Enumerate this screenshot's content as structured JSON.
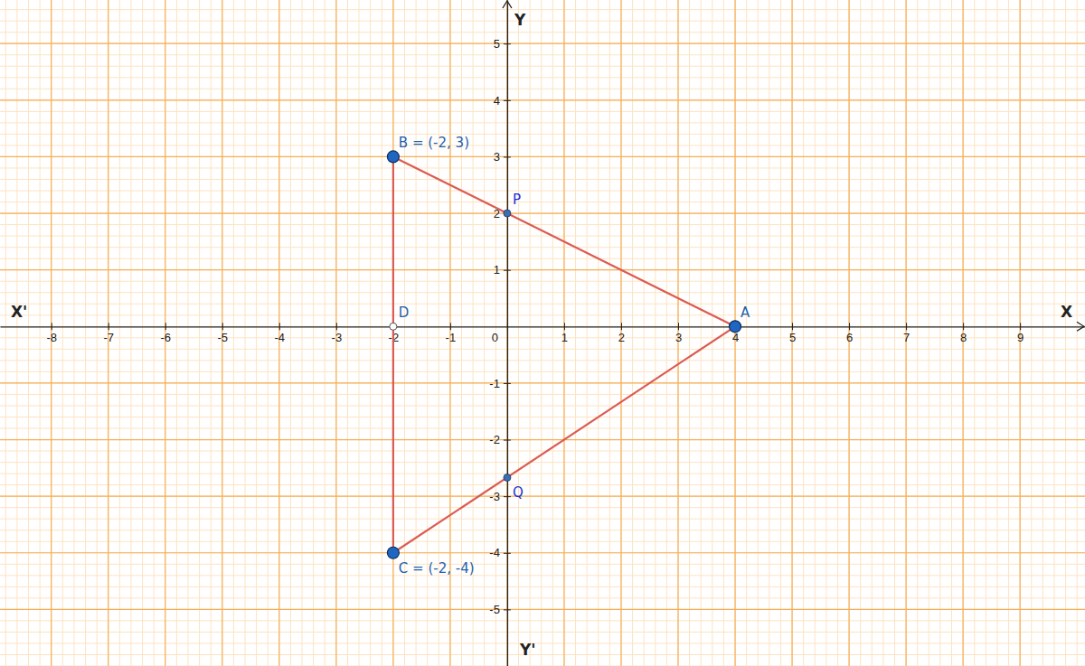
{
  "chart_data": {
    "type": "scatter",
    "axis_labels": {
      "x": "X",
      "x_neg": "X'",
      "y": "Y",
      "y_neg": "Y'"
    },
    "xlim": [
      -8.9,
      10.14
    ],
    "ylim": [
      -6.0,
      5.77
    ],
    "xticks": [
      -8,
      -7,
      -6,
      -5,
      -4,
      -3,
      -2,
      -1,
      0,
      1,
      2,
      3,
      4,
      5,
      6,
      7,
      8,
      9
    ],
    "yticks": [
      -5,
      -4,
      -3,
      -2,
      -1,
      1,
      2,
      3,
      4,
      5
    ],
    "grid": true,
    "series": [
      {
        "type": "polygon",
        "marker": "circle",
        "color": "#dc5b52",
        "labels": [
          "A",
          "B = (-2, 3)",
          "C = (-2, -4)"
        ],
        "x": [
          4,
          -2,
          -2
        ],
        "values": [
          0,
          3,
          -4
        ]
      },
      {
        "type": "scatter",
        "marker": "dot",
        "color": "#3d6fb0",
        "labels": [
          "P",
          "Q"
        ],
        "x": [
          0,
          0
        ],
        "values": [
          2,
          -2.67
        ]
      },
      {
        "type": "scatter",
        "marker": "ring",
        "color": "#ffffff",
        "labels": [
          "D"
        ],
        "x": [
          -2
        ],
        "values": [
          0
        ]
      }
    ]
  }
}
